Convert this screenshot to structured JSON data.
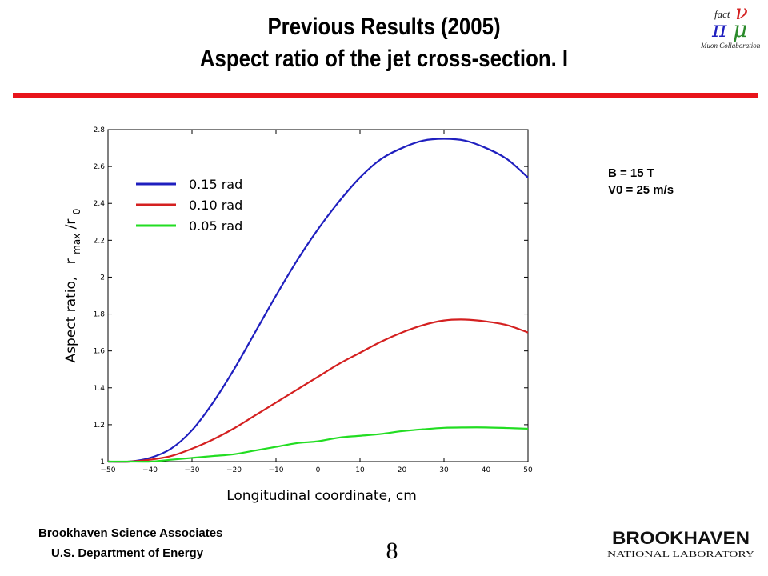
{
  "slide": {
    "title_line1": "Previous Results (2005)",
    "title_line2": "Aspect ratio of the jet cross-section. I",
    "logo_symbols": {
      "nu": "ν",
      "pi": "π",
      "mu": "μ"
    },
    "logo_fact": "fact",
    "logo_caption": "Muon Collaboration",
    "params": [
      "B = 15 T",
      "V0 = 25 m/s"
    ],
    "footer_org": "Brookhaven Science Associates",
    "footer_dept": "U.S. Department of Energy",
    "page_number": "8",
    "bnl_name": "BROOKHAVEN",
    "bnl_sub": "NATIONAL LABORATORY",
    "colors": {
      "accent_bar": "#e8141b"
    }
  },
  "chart_data": {
    "type": "line",
    "title": "",
    "xlabel": "Longitudinal coordinate,  cm",
    "ylabel_text": "Aspect ratio,",
    "ylabel_var": "r",
    "ylabel_sub1": "max",
    "ylabel_slash": "/r",
    "ylabel_sub2": "0",
    "xlim": [
      -50,
      50
    ],
    "ylim": [
      1,
      2.8
    ],
    "xticks": [
      -50,
      -40,
      -30,
      -20,
      -10,
      0,
      10,
      20,
      30,
      40,
      50
    ],
    "yticks": [
      1,
      1.2,
      1.4,
      1.6,
      1.8,
      2,
      2.2,
      2.4,
      2.6,
      2.8
    ],
    "xtick_labels": [
      "−50",
      "−40",
      "−30",
      "−20",
      "−10",
      "0",
      "10",
      "20",
      "30",
      "40",
      "50"
    ],
    "ytick_labels": [
      "1",
      "1.2",
      "1.4",
      "1.6",
      "1.8",
      "2",
      "2.2",
      "2.4",
      "2.6",
      "2.8"
    ],
    "grid": false,
    "legend": "top-left",
    "x": [
      -50,
      -45,
      -40,
      -35,
      -30,
      -25,
      -20,
      -15,
      -10,
      -5,
      0,
      5,
      10,
      15,
      20,
      25,
      30,
      35,
      40,
      45,
      50
    ],
    "series": [
      {
        "name": "0.15 rad",
        "color": "#1f1fbf",
        "values": [
          1.0,
          1.0,
          1.02,
          1.07,
          1.17,
          1.32,
          1.5,
          1.7,
          1.9,
          2.09,
          2.26,
          2.41,
          2.54,
          2.64,
          2.7,
          2.74,
          2.75,
          2.74,
          2.7,
          2.64,
          2.54
        ]
      },
      {
        "name": "0.10 rad",
        "color": "#d42020",
        "values": [
          1.0,
          1.0,
          1.01,
          1.03,
          1.07,
          1.12,
          1.18,
          1.25,
          1.32,
          1.39,
          1.46,
          1.53,
          1.59,
          1.65,
          1.7,
          1.74,
          1.765,
          1.77,
          1.76,
          1.74,
          1.7
        ]
      },
      {
        "name": "0.05 rad",
        "color": "#22dd22",
        "values": [
          1.0,
          1.0,
          1.0,
          1.01,
          1.02,
          1.03,
          1.04,
          1.06,
          1.08,
          1.1,
          1.11,
          1.13,
          1.14,
          1.15,
          1.165,
          1.175,
          1.183,
          1.185,
          1.185,
          1.182,
          1.178
        ]
      }
    ]
  }
}
